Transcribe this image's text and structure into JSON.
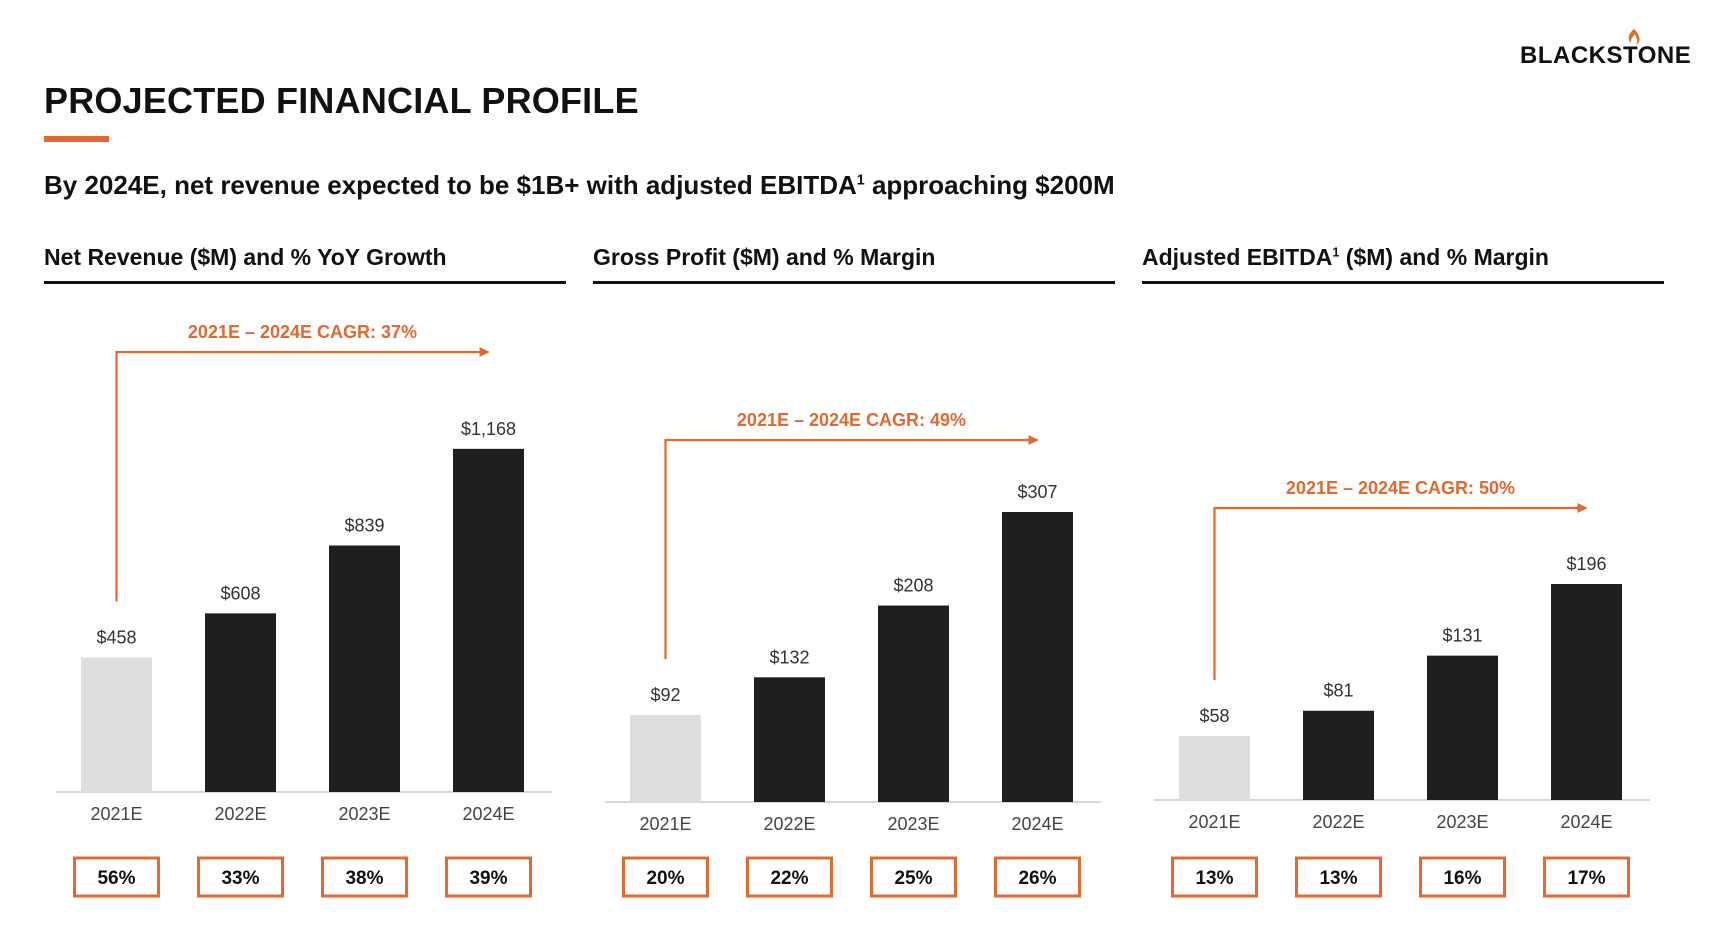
{
  "brand": {
    "name": "BLACKSTONE",
    "accent_color": "#e2692f"
  },
  "page": {
    "title": "PROJECTED FINANCIAL PROFILE",
    "subtitle_pre": "By 2024E, net revenue expected to be $1B+ with adjusted EBITDA",
    "subtitle_sup": "1",
    "subtitle_post": " approaching $200M"
  },
  "colors": {
    "estimate_bar": "#dedede",
    "projection_bar": "#1f1f1f",
    "accent": "#e2692f"
  },
  "chart_data": [
    {
      "type": "bar",
      "title_pre": "Net Revenue ($M) and % YoY Growth",
      "title_sup": "",
      "title_post": "",
      "categories": [
        "2021E",
        "2022E",
        "2023E",
        "2024E"
      ],
      "values": [
        458,
        608,
        839,
        1168
      ],
      "value_labels": [
        "$458",
        "$608",
        "$839",
        "$1,168"
      ],
      "percent_labels": [
        "56%",
        "33%",
        "38%",
        "39%"
      ],
      "cagr_label": "2021E – 2024E CAGR: 37%"
    },
    {
      "type": "bar",
      "title_pre": "Gross Profit ($M) and % Margin",
      "title_sup": "",
      "title_post": "",
      "categories": [
        "2021E",
        "2022E",
        "2023E",
        "2024E"
      ],
      "values": [
        92,
        132,
        208,
        307
      ],
      "value_labels": [
        "$92",
        "$132",
        "$208",
        "$307"
      ],
      "percent_labels": [
        "20%",
        "22%",
        "25%",
        "26%"
      ],
      "cagr_label": "2021E – 2024E CAGR: 49%"
    },
    {
      "type": "bar",
      "title_pre": "Adjusted EBITDA",
      "title_sup": "1",
      "title_post": " ($M) and % Margin",
      "categories": [
        "2021E",
        "2022E",
        "2023E",
        "2024E"
      ],
      "values": [
        58,
        81,
        131,
        196
      ],
      "value_labels": [
        "$58",
        "$81",
        "$131",
        "$196"
      ],
      "percent_labels": [
        "13%",
        "13%",
        "16%",
        "17%"
      ],
      "cagr_label": "2021E – 2024E CAGR: 50%"
    }
  ]
}
